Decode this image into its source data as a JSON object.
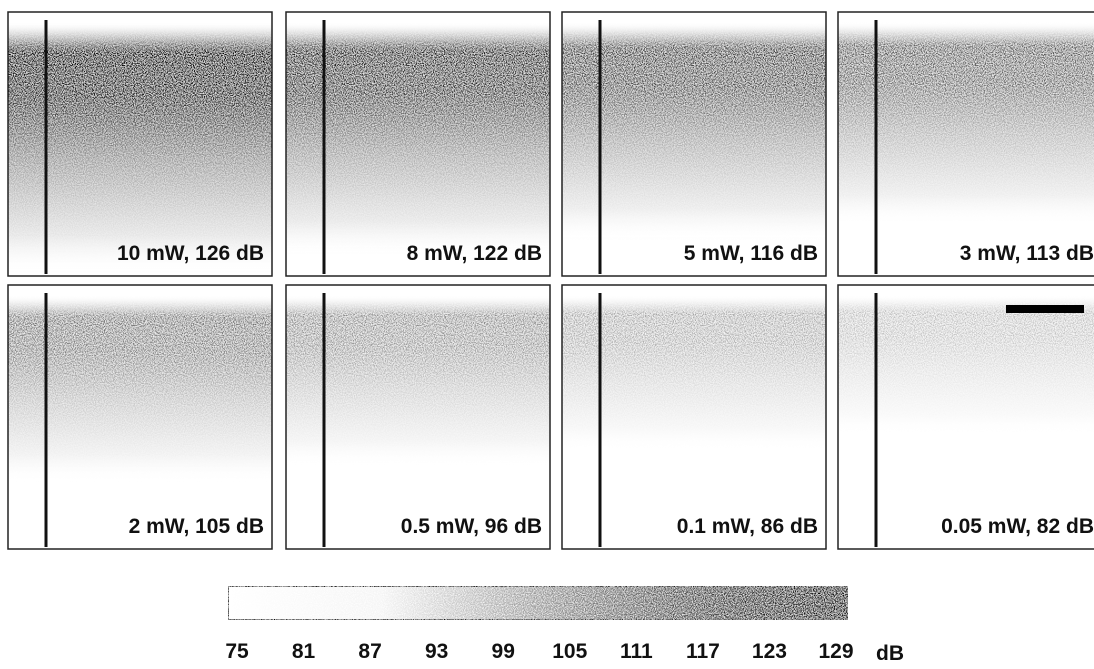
{
  "panels": [
    {
      "label": "10 mW, 126 dB"
    },
    {
      "label": "8 mW, 122 dB"
    },
    {
      "label": "5 mW, 116 dB"
    },
    {
      "label": "3 mW, 113 dB"
    },
    {
      "label": "2 mW, 105 dB"
    },
    {
      "label": "0.5 mW, 96 dB"
    },
    {
      "label": "0.1 mW, 86 dB"
    },
    {
      "label": "0.05 mW, 82 dB"
    }
  ],
  "colorbar": {
    "ticks": [
      75,
      81,
      87,
      93,
      99,
      105,
      111,
      117,
      123,
      129
    ],
    "unit": "dB"
  }
}
